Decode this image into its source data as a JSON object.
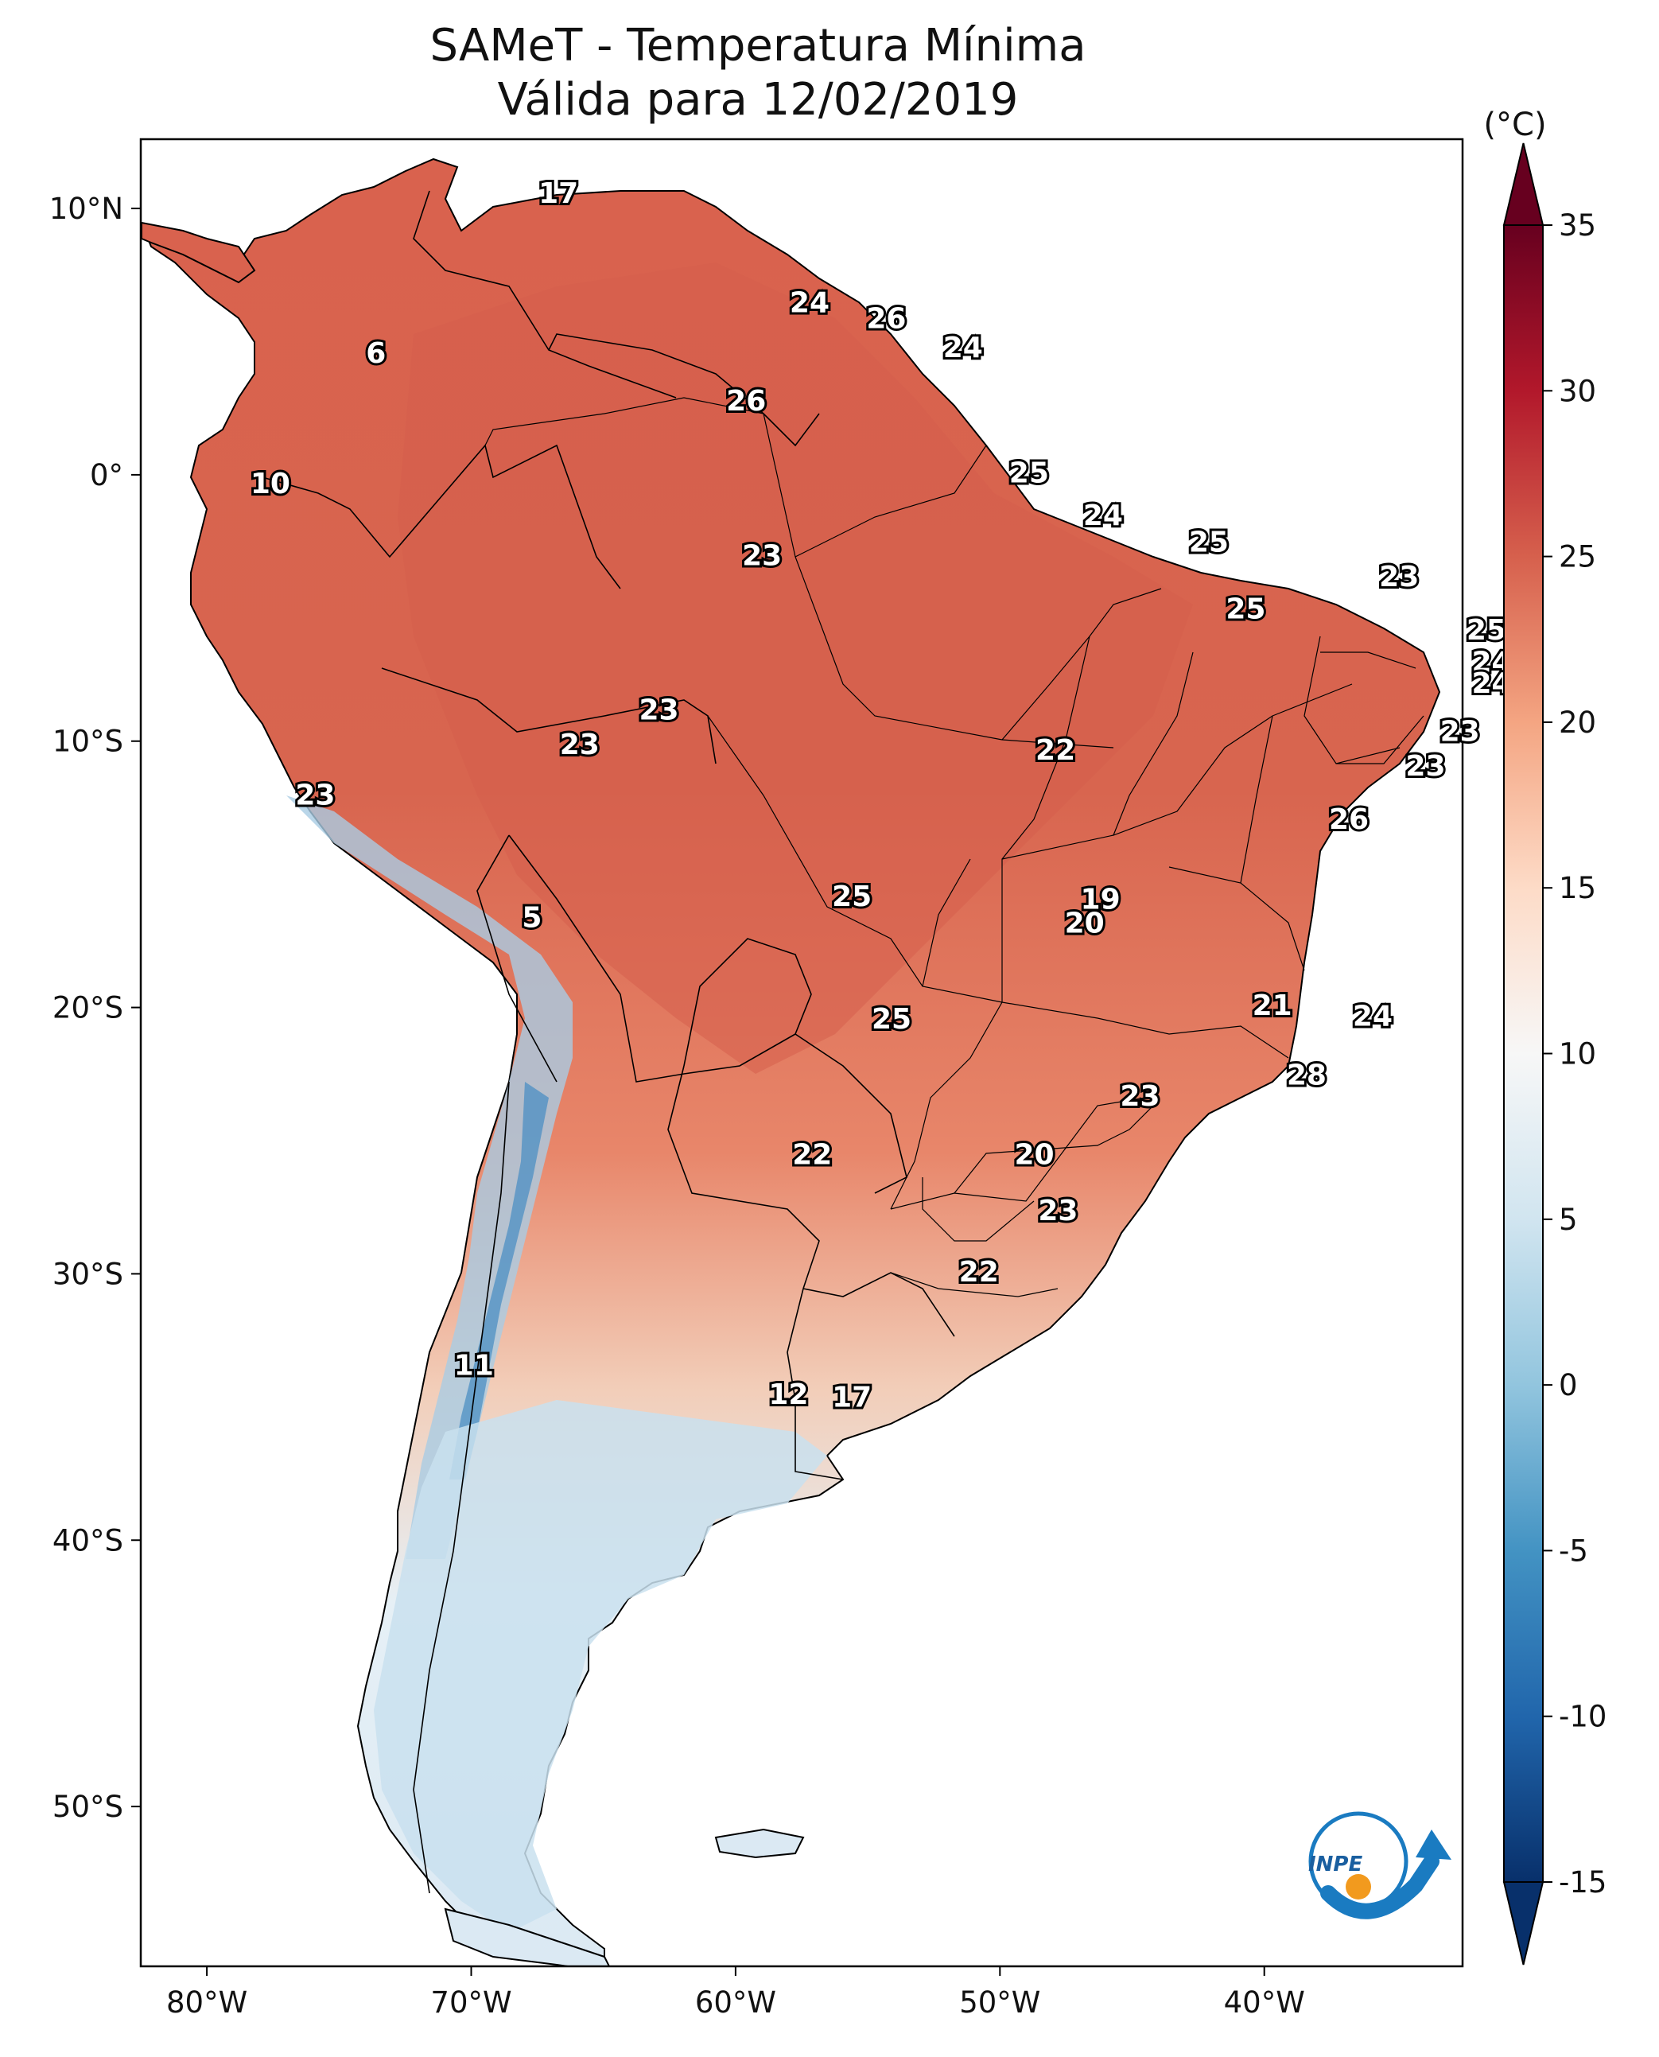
{
  "title": {
    "line1": "SAMeT - Temperatura Mínima",
    "line2": "Válida para 12/02/2019"
  },
  "map": {
    "lat_ticks": [
      "10°N",
      "0°",
      "10°S",
      "20°S",
      "30°S",
      "40°S",
      "50°S"
    ],
    "lon_ticks": [
      "80°W",
      "70°W",
      "60°W",
      "50°W",
      "40°W"
    ],
    "extent": {
      "lon": [
        -82.5,
        -32.5
      ],
      "lat": [
        -56,
        12.6
      ]
    },
    "labels": [
      {
        "t": "17",
        "lon": -66.7,
        "lat": 10.6
      },
      {
        "t": "6",
        "lon": -73.6,
        "lat": 4.6
      },
      {
        "t": "10",
        "lon": -77.6,
        "lat": -0.3
      },
      {
        "t": "24",
        "lon": -57.2,
        "lat": 6.5
      },
      {
        "t": "26",
        "lon": -54.3,
        "lat": 5.9
      },
      {
        "t": "24",
        "lon": -51.4,
        "lat": 4.8
      },
      {
        "t": "26",
        "lon": -59.6,
        "lat": 2.8
      },
      {
        "t": "25",
        "lon": -48.9,
        "lat": 0.1
      },
      {
        "t": "24",
        "lon": -46.1,
        "lat": -1.5
      },
      {
        "t": "25",
        "lon": -42.1,
        "lat": -2.5
      },
      {
        "t": "23",
        "lon": -59.0,
        "lat": -3.0
      },
      {
        "t": "23",
        "lon": -34.9,
        "lat": -3.8
      },
      {
        "t": "25",
        "lon": -40.7,
        "lat": -5.0
      },
      {
        "t": "25",
        "lon": -31.6,
        "lat": -5.8
      },
      {
        "t": "24",
        "lon": -31.4,
        "lat": -7.0
      },
      {
        "t": "24",
        "lon": -31.4,
        "lat": -7.8
      },
      {
        "t": "23",
        "lon": -32.6,
        "lat": -9.6
      },
      {
        "t": "23",
        "lon": -33.9,
        "lat": -10.9
      },
      {
        "t": "23",
        "lon": -62.9,
        "lat": -8.8
      },
      {
        "t": "23",
        "lon": -65.9,
        "lat": -10.1
      },
      {
        "t": "22",
        "lon": -47.9,
        "lat": -10.3
      },
      {
        "t": "23",
        "lon": -75.9,
        "lat": -12.0
      },
      {
        "t": "26",
        "lon": -36.8,
        "lat": -12.9
      },
      {
        "t": "5",
        "lon": -67.7,
        "lat": -16.6
      },
      {
        "t": "25",
        "lon": -55.6,
        "lat": -15.8
      },
      {
        "t": "19",
        "lon": -46.2,
        "lat": -15.9
      },
      {
        "t": "20",
        "lon": -46.8,
        "lat": -16.8
      },
      {
        "t": "21",
        "lon": -39.7,
        "lat": -19.9
      },
      {
        "t": "24",
        "lon": -35.9,
        "lat": -20.3
      },
      {
        "t": "25",
        "lon": -54.1,
        "lat": -20.4
      },
      {
        "t": "28",
        "lon": -38.4,
        "lat": -22.5
      },
      {
        "t": "23",
        "lon": -44.7,
        "lat": -23.3
      },
      {
        "t": "22",
        "lon": -57.1,
        "lat": -25.5
      },
      {
        "t": "20",
        "lon": -48.7,
        "lat": -25.5
      },
      {
        "t": "23",
        "lon": -47.8,
        "lat": -27.6
      },
      {
        "t": "22",
        "lon": -50.8,
        "lat": -29.9
      },
      {
        "t": "11",
        "lon": -69.9,
        "lat": -33.4
      },
      {
        "t": "12",
        "lon": -58.0,
        "lat": -34.5
      },
      {
        "t": "17",
        "lon": -55.6,
        "lat": -34.6
      }
    ]
  },
  "colorbar": {
    "unit": "(°C)",
    "ticks": [
      "35",
      "30",
      "25",
      "20",
      "15",
      "10",
      "5",
      "0",
      "-5",
      "-10",
      "-15"
    ],
    "range": [
      -15,
      35
    ],
    "colors": [
      "#08306b",
      "#2166ac",
      "#4393c3",
      "#92c5de",
      "#d1e5f0",
      "#f7f7f7",
      "#fddbc7",
      "#f4a582",
      "#d6604d",
      "#b2182b",
      "#67001f"
    ]
  },
  "logo": {
    "text": "INPE"
  }
}
